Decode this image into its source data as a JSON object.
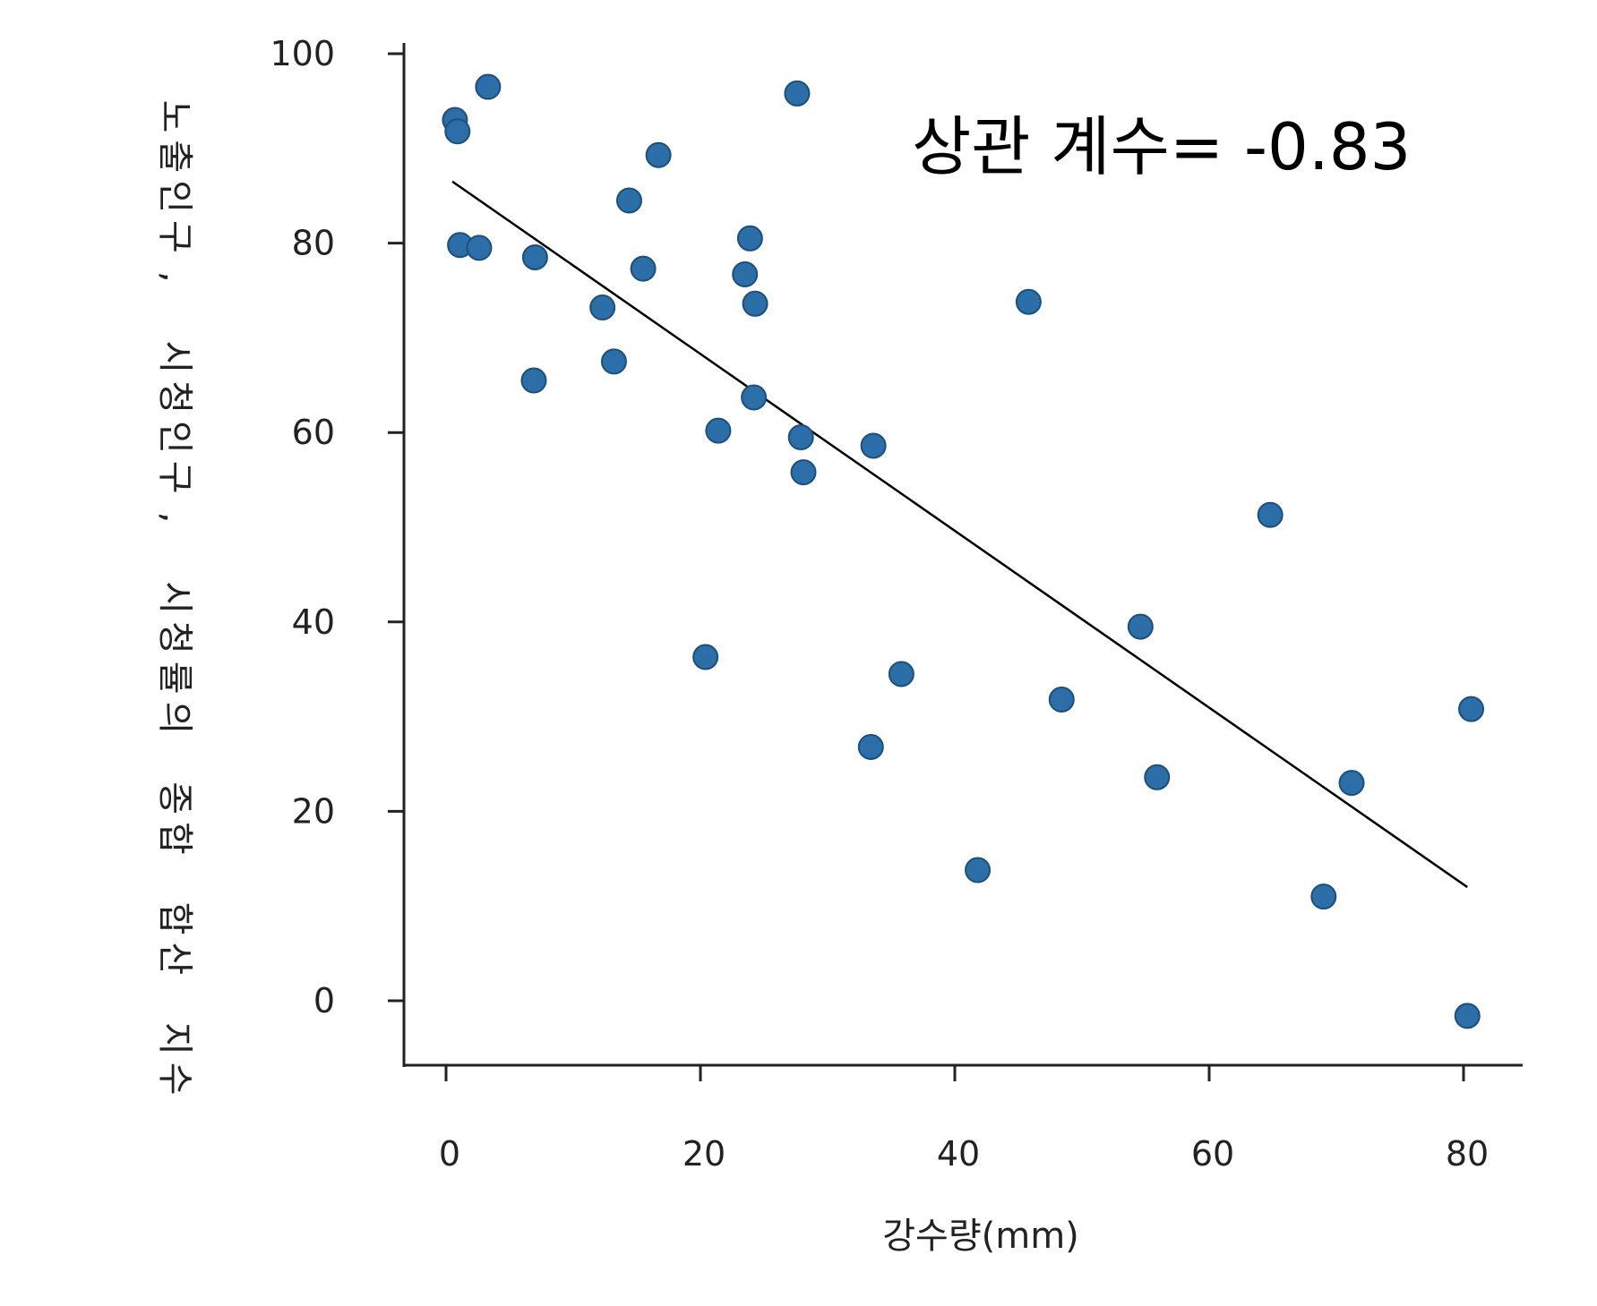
{
  "chart_data": {
    "type": "scatter",
    "title": "",
    "xlabel": "강수량(mm)",
    "ylabel": "노출인구, 시청인구, 시청률의 종합 합산 지수",
    "xlim": [
      -2,
      84
    ],
    "ylim": [
      -6,
      102
    ],
    "xticks": [
      0,
      20,
      40,
      60,
      80
    ],
    "yticks": [
      0,
      20,
      40,
      60,
      80,
      100
    ],
    "annotation": "상관 계수= -0.83",
    "point_color": "#2b6ea8",
    "point_stroke": "#1d4f7c",
    "line_color": "#000000",
    "grid": false,
    "legend": "none",
    "series": [
      {
        "points": [
          [
            0.7,
            93
          ],
          [
            0.9,
            91.8
          ],
          [
            3.3,
            96.5
          ],
          [
            1.1,
            79.8
          ],
          [
            2.6,
            79.5
          ],
          [
            7.0,
            78.5
          ],
          [
            6.9,
            65.5
          ],
          [
            12.3,
            73.2
          ],
          [
            13.2,
            67.5
          ],
          [
            14.4,
            84.5
          ],
          [
            15.5,
            77.3
          ],
          [
            16.7,
            89.3
          ],
          [
            21.4,
            60.2
          ],
          [
            20.4,
            36.3
          ],
          [
            23.5,
            76.7
          ],
          [
            23.9,
            80.5
          ],
          [
            24.3,
            73.6
          ],
          [
            24.2,
            63.7
          ],
          [
            27.6,
            95.8
          ],
          [
            27.9,
            59.5
          ],
          [
            28.1,
            55.8
          ],
          [
            33.6,
            58.6
          ],
          [
            33.4,
            26.8
          ],
          [
            35.8,
            34.5
          ],
          [
            41.8,
            13.8
          ],
          [
            45.8,
            73.8
          ],
          [
            48.4,
            31.8
          ],
          [
            54.6,
            39.5
          ],
          [
            55.9,
            23.6
          ],
          [
            64.8,
            51.3
          ],
          [
            69.0,
            11.0
          ],
          [
            71.2,
            23.0
          ],
          [
            80.6,
            30.8
          ],
          [
            80.3,
            -1.6
          ]
        ]
      }
    ],
    "trendline": {
      "x": [
        0.5,
        80.3
      ],
      "y": [
        86.5,
        12.0
      ]
    }
  }
}
